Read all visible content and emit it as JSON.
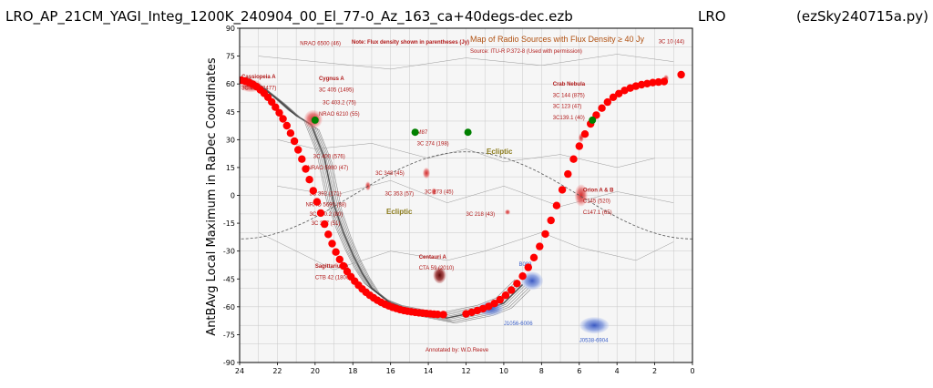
{
  "title_left": "LRO_AP_21CM_YAGI_Integ_1200K_240904_00_El_77-0_Az_163_ca+40degs-dec.ezb",
  "title_mid": "LRO",
  "title_right": "(ezSky240715a.py)",
  "map_annotations": {
    "note": "Note: Flux density shown in parentheses (Jy)",
    "map_title": "Map of Radio Sources with Flux Density ≥ 40 Jy",
    "map_source": "Source: ITU-R P.372-8 (Used with permission)",
    "credit": "Annotated by: W.D.Reeve",
    "ecliptic_1": "Ecliptic",
    "ecliptic_2": "Ecliptic"
  },
  "map_labels": [
    {
      "text": "Cassiopeia A",
      "ra": 23.9,
      "dec": 63,
      "bold": true
    },
    {
      "text": "3C 461 (2477)",
      "ra": 23.9,
      "dec": 57,
      "bold": false
    },
    {
      "text": "NRAO 6500 (46)",
      "ra": 20.8,
      "dec": 81,
      "bold": false
    },
    {
      "text": "Cygnus A",
      "ra": 19.8,
      "dec": 62,
      "bold": true
    },
    {
      "text": "3C 405 (1495)",
      "ra": 19.8,
      "dec": 56,
      "bold": false
    },
    {
      "text": "3C 403.2 (75)",
      "ra": 19.6,
      "dec": 49,
      "bold": false
    },
    {
      "text": "NRAO 6210 (55)",
      "ra": 19.8,
      "dec": 43,
      "bold": false
    },
    {
      "text": "3C 400 (576)",
      "ra": 20.1,
      "dec": 20,
      "bold": false
    },
    {
      "text": "NRAO 5980 (47)",
      "ra": 20.4,
      "dec": 14,
      "bold": false
    },
    {
      "text": "3C 392 (171)",
      "ra": 20.3,
      "dec": 0,
      "bold": false
    },
    {
      "text": "NRAO 5690 (88)",
      "ra": 20.5,
      "dec": -6,
      "bold": false
    },
    {
      "text": "3C 390.2 (80)",
      "ra": 20.3,
      "dec": -11,
      "bold": false
    },
    {
      "text": "3C 387 (51)",
      "ra": 20.2,
      "dec": -16,
      "bold": false
    },
    {
      "text": "Sagittarius A",
      "ra": 20.0,
      "dec": -39,
      "bold": true
    },
    {
      "text": "CTB 42 (1800)",
      "ra": 20.0,
      "dec": -45,
      "bold": false
    },
    {
      "text": "3C 348 (45)",
      "ra": 16.8,
      "dec": 11,
      "bold": false
    },
    {
      "text": "3C 353 (57)",
      "ra": 16.3,
      "dec": 0,
      "bold": false
    },
    {
      "text": "M87",
      "ra": 14.6,
      "dec": 33,
      "bold": false
    },
    {
      "text": "3C 274 (198)",
      "ra": 14.6,
      "dec": 27,
      "bold": false
    },
    {
      "text": "3C 273 (45)",
      "ra": 14.2,
      "dec": 1,
      "bold": false
    },
    {
      "text": "3C 218 (43)",
      "ra": 12.0,
      "dec": -11,
      "bold": false
    },
    {
      "text": "Centauri A",
      "ra": 14.5,
      "dec": -34,
      "bold": true
    },
    {
      "text": "CTA 59 (2010)",
      "ra": 14.5,
      "dec": -40,
      "bold": false
    },
    {
      "text": "Crab Nebula",
      "ra": 7.4,
      "dec": 59,
      "bold": true
    },
    {
      "text": "3C 144 (875)",
      "ra": 7.4,
      "dec": 53,
      "bold": false
    },
    {
      "text": "3C 123 (47)",
      "ra": 7.4,
      "dec": 47,
      "bold": false
    },
    {
      "text": "3C139.1 (40)",
      "ra": 7.4,
      "dec": 41,
      "bold": false
    },
    {
      "text": "Orion A & B",
      "ra": 5.8,
      "dec": 2,
      "bold": true
    },
    {
      "text": "C145 (520)",
      "ra": 5.8,
      "dec": -4,
      "bold": false
    },
    {
      "text": "C147.1 (65)",
      "ra": 5.8,
      "dec": -10,
      "bold": false
    },
    {
      "text": "3C 10 (44)",
      "ra": 1.8,
      "dec": 82,
      "bold": false
    }
  ],
  "map_blue_labels": [
    {
      "text": "J1056-6006",
      "ra": 10.0,
      "dec": -70
    },
    {
      "text": "B083",
      "ra": 9.2,
      "dec": -38
    },
    {
      "text": "J0538-6904",
      "ra": 6.0,
      "dec": -79
    }
  ],
  "chart_data": {
    "type": "scatter",
    "title": "LRO_AP_21CM_YAGI_Integ_1200K_240904_00_El_77-0_Az_163_ca+40degs-dec.ezb",
    "xlabel": "",
    "ylabel": "AntBAvg Local Maximum in RaDec Coordinates",
    "xlim": [
      24,
      0
    ],
    "ylim": [
      -90,
      90
    ],
    "xticks": [
      24,
      22,
      20,
      18,
      16,
      14,
      12,
      10,
      8,
      6,
      4,
      2,
      0
    ],
    "yticks": [
      90,
      75,
      60,
      45,
      30,
      15,
      0,
      -15,
      -30,
      -45,
      -60,
      -75,
      -90
    ],
    "grid": false,
    "background": "radio source map image",
    "series": [
      {
        "color": "#ff0000",
        "marker": "o",
        "x": [
          23.9,
          23.7,
          23.5,
          23.3,
          23.1,
          22.9,
          22.7,
          22.5,
          22.3,
          22.1,
          21.9,
          21.7,
          21.5,
          21.3,
          21.1,
          20.9,
          20.7,
          20.5,
          20.3,
          20.1,
          19.9,
          19.7,
          19.5,
          19.3,
          19.1,
          18.9,
          18.7,
          18.5,
          18.3,
          18.1,
          17.9,
          17.7,
          17.5,
          17.3,
          17.1,
          16.9,
          16.7,
          16.5,
          16.3,
          16.1,
          15.9,
          15.7,
          15.5,
          15.3,
          15.1,
          14.9,
          14.7,
          14.5,
          14.3,
          14.1,
          13.9,
          13.7,
          13.5,
          13.2,
          12.0,
          11.7,
          11.4,
          11.1,
          10.8,
          10.5,
          10.2,
          9.9,
          9.6,
          9.3,
          9.0,
          8.7,
          8.4,
          8.1,
          7.8,
          7.5,
          7.2,
          6.9,
          6.6,
          6.3,
          6.0,
          5.7,
          5.4,
          5.1,
          4.8,
          4.5,
          4.2,
          3.9,
          3.6,
          3.3,
          3.0,
          2.7,
          2.4,
          2.1,
          1.8,
          1.5,
          0.6
        ],
        "y": [
          62,
          61.5,
          60.8,
          59.8,
          58.5,
          56.8,
          55,
          52.8,
          50.3,
          47.5,
          44.5,
          41.2,
          37.5,
          33.5,
          29.2,
          24.5,
          19.5,
          14.2,
          8.5,
          2.5,
          -3.5,
          -9.5,
          -15.5,
          -21,
          -26,
          -30.5,
          -34.5,
          -38,
          -41,
          -43.8,
          -46.2,
          -48.4,
          -50.4,
          -52.2,
          -53.8,
          -55.2,
          -56.5,
          -57.6,
          -58.6,
          -59.5,
          -60.3,
          -60.9,
          -61.5,
          -62,
          -62.4,
          -62.7,
          -63,
          -63.2,
          -63.4,
          -63.6,
          -63.8,
          -64,
          -64.1,
          -64.2,
          -63.8,
          -63,
          -62,
          -61,
          -59.8,
          -58.2,
          -56.2,
          -53.8,
          -51,
          -47.5,
          -43.5,
          -38.8,
          -33.5,
          -27.5,
          -20.8,
          -13.5,
          -5.5,
          3,
          11.5,
          19.5,
          26.5,
          33,
          38.5,
          43.2,
          47,
          50.2,
          52.8,
          54.8,
          56.5,
          57.8,
          58.8,
          59.6,
          60.2,
          60.7,
          61,
          61.3,
          65
        ]
      },
      {
        "color": "#008000",
        "marker": "o",
        "x": [
          20.0,
          14.7,
          11.9,
          5.3
        ],
        "y": [
          40.5,
          34,
          34,
          40.5
        ]
      }
    ]
  }
}
